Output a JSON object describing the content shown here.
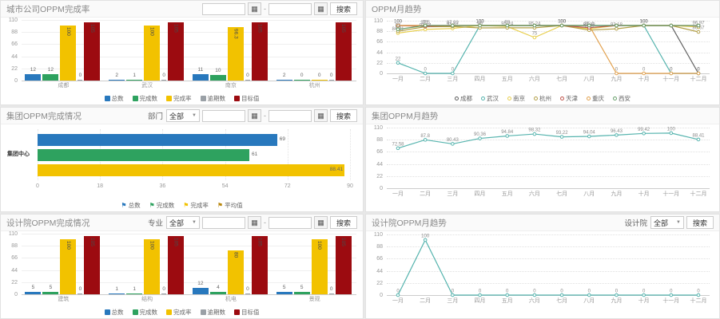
{
  "ui": {
    "search_label": "搜索",
    "all_label": "全部",
    "range_separator": "-",
    "calendar_icon": "▦",
    "caret_icon": "▼",
    "filters": {
      "department": "部门",
      "major": "专业",
      "institute": "设计院"
    }
  },
  "chart_data": [
    {
      "type": "bar",
      "title": "城市公司OPPM完成率",
      "categories": [
        "成都",
        "武汉",
        "南京",
        "杭州"
      ],
      "yticks": [
        0,
        22,
        44,
        66,
        88,
        110
      ],
      "ylim": [
        0,
        110
      ],
      "series": [
        {
          "name": "总数",
          "color": "#2878bd",
          "values": [
            12,
            2,
            11,
            2
          ]
        },
        {
          "name": "完成数",
          "color": "#2ea25f",
          "values": [
            12,
            1,
            10,
            0
          ]
        },
        {
          "name": "完成率",
          "color": "#f2c200",
          "values": [
            100,
            100,
            96.3,
            0
          ]
        },
        {
          "name": "逾期数",
          "color": "#9aa0a6",
          "values": [
            0,
            0,
            0,
            0
          ]
        },
        {
          "name": "目标值",
          "color": "#9c0b10",
          "values": [
            105,
            105,
            105,
            105
          ]
        }
      ]
    },
    {
      "type": "line",
      "title": "OPPM月趋势",
      "show_legend": true,
      "x": [
        "一月",
        "二月",
        "三月",
        "四月",
        "五月",
        "六月",
        "七月",
        "八月",
        "九月",
        "十月",
        "十一月",
        "十二月"
      ],
      "yticks": [
        0,
        22,
        44,
        66,
        88,
        110
      ],
      "ylim": [
        0,
        110
      ],
      "series": [
        {
          "name": "成都",
          "color": "#5f5f5f",
          "values": [
            100,
            100,
            100,
            100,
            100,
            100,
            100,
            100,
            100,
            100,
            100,
            0
          ]
        },
        {
          "name": "武汉",
          "color": "#56b4ae",
          "values": [
            22,
            0,
            0,
            100,
            100,
            100,
            100,
            100,
            100,
            100,
            0,
            0
          ]
        },
        {
          "name": "南京",
          "color": "#e8cf4f",
          "values": [
            84.21,
            91.84,
            93.87,
            100,
            98,
            75,
            100,
            93.18,
            100,
            100,
            100,
            96.97
          ]
        },
        {
          "name": "杭州",
          "color": "#b3a04a",
          "values": [
            88,
            97.5,
            97.92,
            95,
            95.24,
            95.24,
            100,
            90.32,
            93.18,
            100,
            100,
            86.67
          ]
        },
        {
          "name": "天津",
          "color": "#c0544b",
          "values": [
            100,
            98,
            100,
            100,
            100,
            100,
            100,
            95.4,
            100,
            100,
            100,
            100
          ]
        },
        {
          "name": "重庆",
          "color": "#e2a14e",
          "values": [
            100,
            100,
            100,
            100,
            100,
            100,
            100,
            100,
            0,
            0,
            0,
            0
          ]
        },
        {
          "name": "西安",
          "color": "#67a06b",
          "values": [
            92,
            100,
            100,
            100,
            100,
            100,
            100,
            100,
            100,
            100,
            100,
            100
          ]
        }
      ]
    },
    {
      "type": "bar",
      "horizontal": true,
      "title": "集团OPPM完成情况",
      "categories": [
        "集团中心"
      ],
      "xticks": [
        0,
        18,
        36,
        54,
        72,
        90
      ],
      "xlim": [
        0,
        90
      ],
      "series": [
        {
          "name": "总数",
          "color": "#2878bd",
          "values": [
            69
          ]
        },
        {
          "name": "完成数",
          "color": "#2ea25f",
          "values": [
            61
          ]
        },
        {
          "name": "完成率",
          "color": "#f2c200",
          "values": [
            88.41
          ]
        },
        {
          "name": "平均值",
          "color": "#b8860b",
          "values": [
            0
          ]
        }
      ]
    },
    {
      "type": "line",
      "title": "集团OPPM月趋势",
      "show_legend": false,
      "x": [
        "一月",
        "二月",
        "三月",
        "四月",
        "五月",
        "六月",
        "七月",
        "八月",
        "九月",
        "十月",
        "十一月",
        "十二月"
      ],
      "yticks": [
        0,
        22,
        44,
        66,
        88,
        110
      ],
      "ylim": [
        0,
        110
      ],
      "series": [
        {
          "name": "完成率",
          "color": "#56b4ae",
          "values": [
            72.58,
            87.8,
            80.43,
            90.36,
            94.84,
            98.32,
            93.22,
            94.04,
            96.43,
            99.42,
            100,
            88.41
          ]
        }
      ]
    },
    {
      "type": "bar",
      "title": "设计院OPPM完成情况",
      "categories": [
        "建筑",
        "结构",
        "机电",
        "景观"
      ],
      "yticks": [
        0,
        22,
        44,
        66,
        88,
        110
      ],
      "ylim": [
        0,
        110
      ],
      "series": [
        {
          "name": "总数",
          "color": "#2878bd",
          "values": [
            5,
            1,
            12,
            5
          ]
        },
        {
          "name": "完成数",
          "color": "#2ea25f",
          "values": [
            5,
            1,
            4,
            5
          ]
        },
        {
          "name": "完成率",
          "color": "#f2c200",
          "values": [
            100,
            100,
            80,
            100
          ]
        },
        {
          "name": "逾期数",
          "color": "#9aa0a6",
          "values": [
            0,
            0,
            0,
            0
          ]
        },
        {
          "name": "目标值",
          "color": "#9c0b10",
          "values": [
            105,
            105,
            105,
            105
          ]
        }
      ]
    },
    {
      "type": "line",
      "title": "设计院OPPM月趋势",
      "show_legend": false,
      "x": [
        "一月",
        "二月",
        "三月",
        "四月",
        "五月",
        "六月",
        "七月",
        "八月",
        "九月",
        "十月",
        "十一月",
        "十二月"
      ],
      "yticks": [
        0,
        22,
        44,
        66,
        88,
        110
      ],
      "ylim": [
        0,
        110
      ],
      "series": [
        {
          "name": "完成率",
          "color": "#56b4ae",
          "values": [
            0,
            100,
            0,
            0,
            0,
            0,
            0,
            0,
            0,
            0,
            0,
            0
          ]
        }
      ]
    }
  ]
}
